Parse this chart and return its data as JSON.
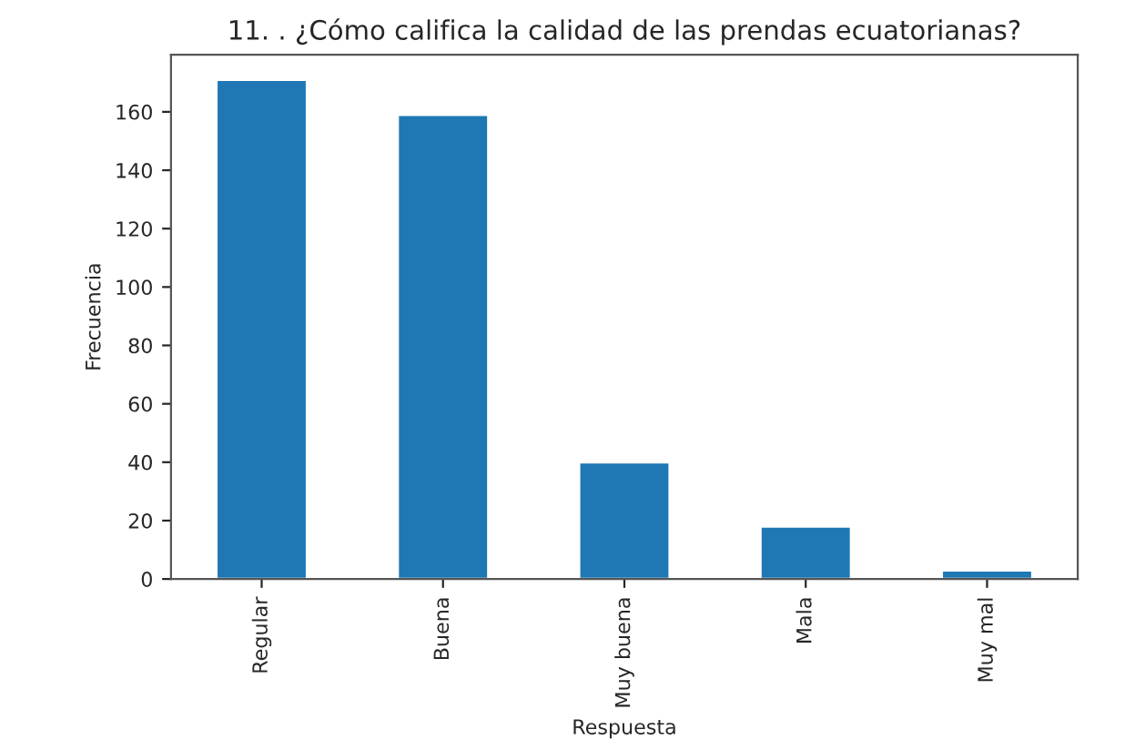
{
  "chart_data": {
    "type": "bar",
    "title": "11. . ¿Cómo califica la calidad de las prendas ecuatorianas?",
    "xlabel": "Respuesta",
    "ylabel": "Frecuencia",
    "categories": [
      "Regular",
      "Buena",
      "Muy buena",
      "Mala",
      "Muy mal"
    ],
    "values": [
      171,
      159,
      40,
      18,
      3
    ],
    "color": "#1f77b4",
    "ylim": [
      0,
      179.55
    ],
    "yticks": [
      0,
      20,
      40,
      60,
      80,
      100,
      120,
      140,
      160
    ],
    "grid": false,
    "legend": false
  }
}
